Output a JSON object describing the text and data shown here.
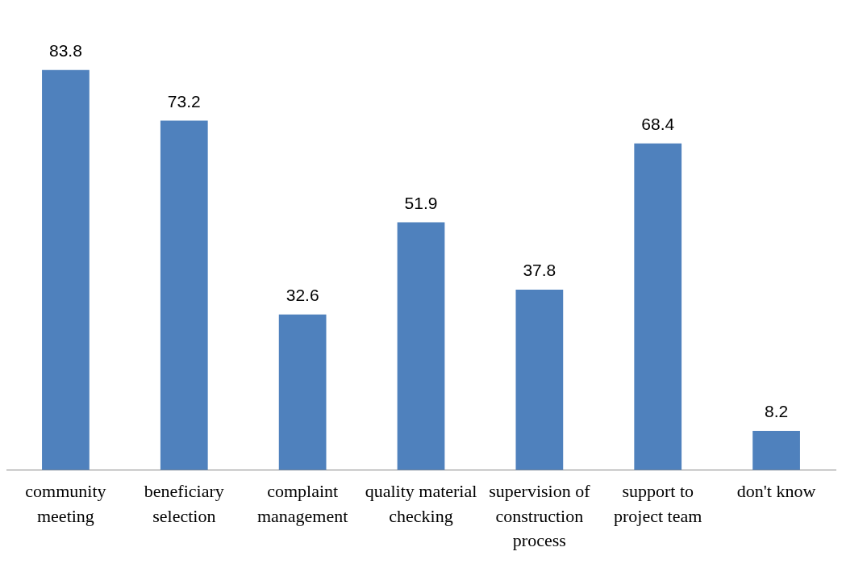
{
  "chart_data": {
    "type": "bar",
    "categories": [
      "community meeting",
      "beneficiary selection",
      "complaint management",
      "quality material checking",
      "supervision of construction process",
      "support to project team",
      "don't know"
    ],
    "values": [
      83.8,
      73.2,
      32.6,
      51.9,
      37.8,
      68.4,
      8.2
    ],
    "color": "#4f81bd",
    "data_labels": true,
    "grid": false,
    "legend": false
  }
}
